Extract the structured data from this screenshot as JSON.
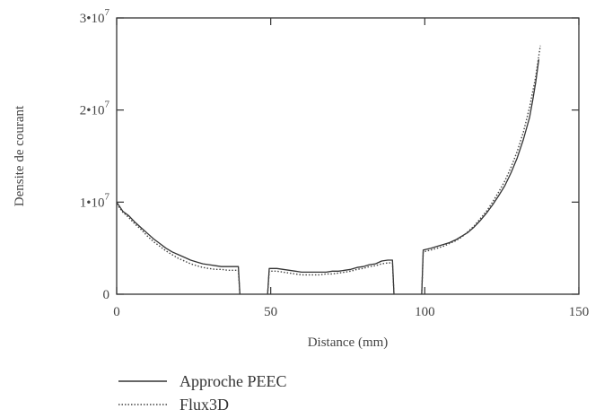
{
  "chart_data": {
    "type": "line",
    "title": "",
    "xlabel": "Distance (mm)",
    "ylabel": "Densite de courant",
    "xlim": [
      0,
      150
    ],
    "ylim": [
      0,
      30000000
    ],
    "x_ticks": [
      {
        "value": 0,
        "label": "0"
      },
      {
        "value": 50,
        "label": "50"
      },
      {
        "value": 100,
        "label": "100"
      },
      {
        "value": 150,
        "label": "150"
      }
    ],
    "y_ticks": [
      {
        "value": 0,
        "mantissa": "0",
        "exp": ""
      },
      {
        "value": 10000000,
        "mantissa": "1•10",
        "exp": "7"
      },
      {
        "value": 20000000,
        "mantissa": "2•10",
        "exp": "7"
      },
      {
        "value": 30000000,
        "mantissa": "3•10",
        "exp": "7"
      }
    ],
    "grid": false,
    "legend_position": "bottom-left",
    "series": [
      {
        "name": "Approche PEEC",
        "style": "solid",
        "color": "#333333",
        "segments": [
          [
            [
              0,
              10000000
            ],
            [
              2,
              9000000
            ],
            [
              4,
              8500000
            ],
            [
              6,
              7800000
            ],
            [
              8,
              7200000
            ],
            [
              10,
              6600000
            ],
            [
              12,
              6000000
            ],
            [
              14,
              5500000
            ],
            [
              16,
              5000000
            ],
            [
              18,
              4600000
            ],
            [
              20,
              4300000
            ],
            [
              22,
              4000000
            ],
            [
              24,
              3700000
            ],
            [
              26,
              3500000
            ],
            [
              28,
              3300000
            ],
            [
              30,
              3200000
            ],
            [
              32,
              3100000
            ],
            [
              34,
              3000000
            ],
            [
              36,
              3000000
            ],
            [
              38,
              3000000
            ],
            [
              39.5,
              3000000
            ],
            [
              40,
              0
            ]
          ],
          [
            [
              49,
              0
            ],
            [
              49.5,
              2800000
            ],
            [
              52,
              2800000
            ],
            [
              54,
              2700000
            ],
            [
              56,
              2600000
            ],
            [
              58,
              2500000
            ],
            [
              60,
              2400000
            ],
            [
              62,
              2400000
            ],
            [
              64,
              2400000
            ],
            [
              66,
              2400000
            ],
            [
              68,
              2400000
            ],
            [
              70,
              2500000
            ],
            [
              72,
              2500000
            ],
            [
              74,
              2600000
            ],
            [
              76,
              2700000
            ],
            [
              78,
              2900000
            ],
            [
              80,
              3000000
            ],
            [
              82,
              3200000
            ],
            [
              84,
              3300000
            ],
            [
              86,
              3600000
            ],
            [
              88,
              3700000
            ],
            [
              89.5,
              3700000
            ],
            [
              90,
              0
            ]
          ],
          [
            [
              99,
              0
            ],
            [
              99.5,
              4800000
            ],
            [
              102,
              5000000
            ],
            [
              104,
              5200000
            ],
            [
              106,
              5400000
            ],
            [
              108,
              5600000
            ],
            [
              110,
              5900000
            ],
            [
              112,
              6300000
            ],
            [
              114,
              6700000
            ],
            [
              116,
              7300000
            ],
            [
              118,
              8000000
            ],
            [
              120,
              8800000
            ],
            [
              122,
              9700000
            ],
            [
              124,
              10700000
            ],
            [
              126,
              11800000
            ],
            [
              128,
              13200000
            ],
            [
              130,
              14800000
            ],
            [
              132,
              16800000
            ],
            [
              134,
              19200000
            ],
            [
              135,
              21000000
            ],
            [
              136,
              23000000
            ],
            [
              137,
              25500000
            ]
          ]
        ]
      },
      {
        "name": "Flux3D",
        "style": "dotted",
        "color": "#444444",
        "segments": [
          [
            [
              0,
              9800000
            ],
            [
              2,
              8900000
            ],
            [
              4,
              8300000
            ],
            [
              6,
              7600000
            ],
            [
              8,
              7000000
            ],
            [
              10,
              6300000
            ],
            [
              12,
              5700000
            ],
            [
              14,
              5200000
            ],
            [
              16,
              4700000
            ],
            [
              18,
              4300000
            ],
            [
              20,
              3900000
            ],
            [
              22,
              3600000
            ],
            [
              24,
              3300000
            ],
            [
              26,
              3100000
            ],
            [
              28,
              2900000
            ],
            [
              30,
              2800000
            ],
            [
              32,
              2700000
            ],
            [
              34,
              2700000
            ],
            [
              36,
              2600000
            ],
            [
              38,
              2600000
            ],
            [
              39.5,
              2600000
            ],
            [
              40,
              0
            ]
          ],
          [
            [
              49,
              0
            ],
            [
              49.5,
              2500000
            ],
            [
              52,
              2500000
            ],
            [
              54,
              2400000
            ],
            [
              56,
              2300000
            ],
            [
              58,
              2200000
            ],
            [
              60,
              2100000
            ],
            [
              62,
              2100000
            ],
            [
              64,
              2100000
            ],
            [
              66,
              2100000
            ],
            [
              68,
              2200000
            ],
            [
              70,
              2200000
            ],
            [
              72,
              2300000
            ],
            [
              74,
              2400000
            ],
            [
              76,
              2500000
            ],
            [
              78,
              2700000
            ],
            [
              80,
              2800000
            ],
            [
              82,
              3000000
            ],
            [
              84,
              3100000
            ],
            [
              86,
              3300000
            ],
            [
              88,
              3400000
            ],
            [
              89.5,
              3400000
            ],
            [
              90,
              0
            ]
          ],
          [
            [
              99,
              0
            ],
            [
              99.5,
              4600000
            ],
            [
              102,
              4800000
            ],
            [
              104,
              5000000
            ],
            [
              106,
              5200000
            ],
            [
              108,
              5500000
            ],
            [
              110,
              5800000
            ],
            [
              112,
              6200000
            ],
            [
              114,
              6800000
            ],
            [
              116,
              7400000
            ],
            [
              118,
              8200000
            ],
            [
              120,
              9000000
            ],
            [
              122,
              10000000
            ],
            [
              124,
              11100000
            ],
            [
              126,
              12300000
            ],
            [
              128,
              13800000
            ],
            [
              130,
              15500000
            ],
            [
              132,
              17600000
            ],
            [
              134,
              20300000
            ],
            [
              136,
              23600000
            ],
            [
              137.5,
              27000000
            ]
          ]
        ]
      }
    ]
  }
}
